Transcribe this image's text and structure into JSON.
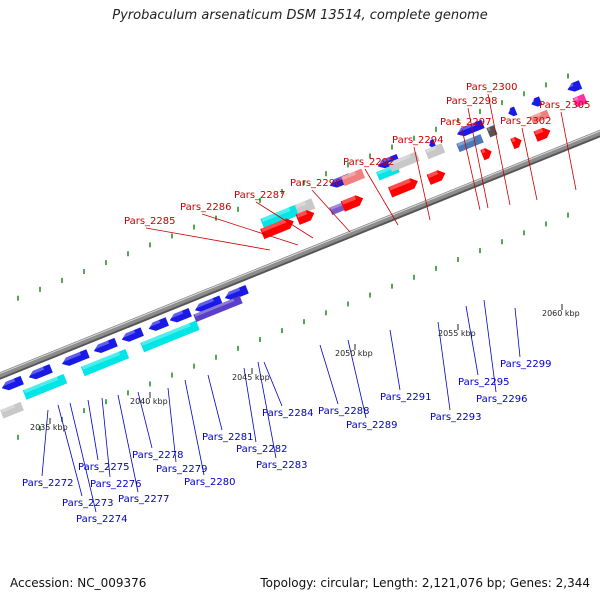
{
  "title": "Pyrobaculum arsenaticum DSM 13514, complete genome",
  "footer": {
    "accession": "Accession: NC_009376",
    "summary": "Topology: circular; Length: 2,121,076 bp; Genes: 2,344"
  },
  "colors": {
    "forward_gene": "#ff0000",
    "forward_gene_light": "#f08080",
    "reverse_gene": "#1a1ae6",
    "cds_cyan": "#00e5e5",
    "rna_magenta": "#ff2fa8",
    "pseudo_gray": "#c8c8c8",
    "label_forward": "#cc0000",
    "label_reverse": "#0000cc",
    "axis": "#8c8c8c"
  },
  "scale_labels": [
    "2035 kbp",
    "2040 kbp",
    "2045 kbp",
    "2050 kbp",
    "2055 kbp",
    "2060 kbp"
  ],
  "forward_labels": [
    "Pars_2285",
    "Pars_2286",
    "Pars_2287",
    "Pars_2290",
    "Pars_2292",
    "Pars_2294",
    "Pars_2297",
    "Pars_2298",
    "Pars_2300",
    "Pars_2302",
    "Pars_2305"
  ],
  "reverse_labels": [
    "Pars_2272",
    "Pars_2273",
    "Pars_2274",
    "Pars_2275",
    "Pars_2276",
    "Pars_2277",
    "Pars_2278",
    "Pars_2279",
    "Pars_2280",
    "Pars_2281",
    "Pars_2282",
    "Pars_2283",
    "Pars_2284",
    "Pars_2288",
    "Pars_2289",
    "Pars_2291",
    "Pars_2293",
    "Pars_2295",
    "Pars_2296",
    "Pars_2299"
  ]
}
